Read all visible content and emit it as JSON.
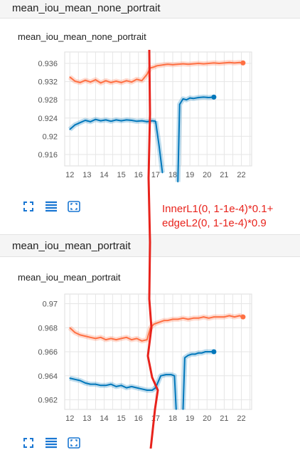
{
  "sections": [
    {
      "header": "mean_iou_mean_none_portrait"
    },
    {
      "header": "mean_iou_mean_portrait"
    }
  ],
  "annotation": {
    "line1": "InnerL1(0, 1-1e-4)*0.1+",
    "line2": "edgeL2(0, 1-1e-4)*0.9",
    "color": "#e8231c"
  },
  "toolbar_icons": [
    "fit-domain-icon",
    "data-table-icon",
    "expand-icon"
  ],
  "chart_data": [
    {
      "type": "line",
      "title": "mean_iou_mean_none_portrait",
      "xlabel": "",
      "ylabel": "",
      "xlim": [
        11.7,
        22.6
      ],
      "ylim": [
        0.9135,
        0.9385
      ],
      "x_ticks": [
        12,
        13,
        14,
        15,
        16,
        17,
        18,
        19,
        20,
        21,
        22
      ],
      "y_ticks": [
        0.916,
        0.92,
        0.924,
        0.928,
        0.932,
        0.936
      ],
      "y_tick_labels": [
        "0.916",
        "0.92",
        "0.924",
        "0.928",
        "0.932",
        "0.936"
      ],
      "grid": true,
      "series": [
        {
          "color": "#ff7043",
          "segments": [
            {
              "x": [
                12.0,
                12.3,
                12.6,
                12.9,
                13.2,
                13.5,
                13.8,
                14.1,
                14.4,
                14.7,
                15.0,
                15.3,
                15.6,
                15.9,
                16.2,
                16.5,
                16.7,
                16.9,
                17.1,
                17.3,
                17.5,
                17.7,
                18.0,
                18.3,
                18.6,
                18.9,
                19.2,
                19.5,
                19.8,
                20.1,
                20.4,
                20.7,
                21.0,
                21.3,
                21.6,
                21.9,
                22.1
              ],
              "y": [
                0.933,
                0.9321,
                0.9318,
                0.9323,
                0.9319,
                0.9324,
                0.9317,
                0.9322,
                0.9318,
                0.9321,
                0.9318,
                0.9322,
                0.9319,
                0.9325,
                0.9322,
                0.9336,
                0.935,
                0.9352,
                0.9355,
                0.9356,
                0.9357,
                0.9358,
                0.9357,
                0.9358,
                0.9359,
                0.9358,
                0.9359,
                0.936,
                0.9359,
                0.936,
                0.9361,
                0.936,
                0.9361,
                0.9362,
                0.9361,
                0.9362,
                0.9361
              ]
            }
          ]
        },
        {
          "color": "#0077bb",
          "segments": [
            {
              "x": [
                12.0,
                12.3,
                12.6,
                12.9,
                13.2,
                13.5,
                13.8,
                14.1,
                14.4,
                14.7,
                15.0,
                15.3,
                15.6,
                15.9,
                16.2,
                16.5,
                16.8,
                17.0
              ],
              "y": [
                0.9215,
                0.9225,
                0.923,
                0.9235,
                0.9232,
                0.9237,
                0.9234,
                0.9236,
                0.9233,
                0.9236,
                0.9234,
                0.9236,
                0.9235,
                0.9233,
                0.9234,
                0.9232,
                0.9234,
                0.9233
              ]
            },
            {
              "x": [
                17.0,
                17.2,
                17.4
              ],
              "y": [
                0.9233,
                0.918,
                0.912
              ]
            },
            {
              "x": [
                18.3,
                18.4,
                18.6,
                18.8,
                19.0,
                19.2,
                19.5,
                19.8,
                20.1,
                20.4
              ],
              "y": [
                0.91,
                0.927,
                0.9282,
                0.928,
                0.9284,
                0.9283,
                0.9285,
                0.9286,
                0.9285,
                0.9286
              ]
            }
          ]
        }
      ]
    },
    {
      "type": "line",
      "title": "mean_iou_mean_portrait",
      "xlabel": "",
      "ylabel": "",
      "xlim": [
        11.7,
        22.6
      ],
      "ylim": [
        0.9612,
        0.9708
      ],
      "x_ticks": [
        12,
        13,
        14,
        15,
        16,
        17,
        18,
        19,
        20,
        21,
        22
      ],
      "y_ticks": [
        0.962,
        0.964,
        0.966,
        0.968,
        0.97
      ],
      "y_tick_labels": [
        "0.962",
        "0.964",
        "0.966",
        "0.968",
        "0.97"
      ],
      "grid": true,
      "series": [
        {
          "color": "#ff7043",
          "segments": [
            {
              "x": [
                12.0,
                12.3,
                12.6,
                12.9,
                13.2,
                13.5,
                13.8,
                14.1,
                14.4,
                14.7,
                15.0,
                15.3,
                15.6,
                15.9,
                16.2,
                16.5,
                16.7,
                16.9,
                17.1,
                17.3,
                17.5,
                17.7,
                18.0,
                18.3,
                18.6,
                18.9,
                19.2,
                19.5,
                19.8,
                20.1,
                20.4,
                20.7,
                21.0,
                21.3,
                21.6,
                21.9,
                22.1
              ],
              "y": [
                0.968,
                0.9676,
                0.9674,
                0.9673,
                0.9672,
                0.9671,
                0.9672,
                0.967,
                0.9671,
                0.967,
                0.9671,
                0.9672,
                0.967,
                0.9671,
                0.9669,
                0.967,
                0.968,
                0.9683,
                0.9684,
                0.9685,
                0.9686,
                0.9686,
                0.9687,
                0.9687,
                0.9688,
                0.9687,
                0.9688,
                0.9688,
                0.9689,
                0.9688,
                0.9689,
                0.9689,
                0.9689,
                0.969,
                0.9689,
                0.969,
                0.9689
              ]
            }
          ]
        },
        {
          "color": "#0077bb",
          "segments": [
            {
              "x": [
                12.0,
                12.3,
                12.6,
                12.9,
                13.2,
                13.5,
                13.8,
                14.1,
                14.4,
                14.7,
                15.0,
                15.3,
                15.6,
                15.9,
                16.2,
                16.5,
                16.8,
                17.0
              ],
              "y": [
                0.9638,
                0.9637,
                0.9636,
                0.9634,
                0.9633,
                0.9633,
                0.9632,
                0.9632,
                0.9633,
                0.9631,
                0.9632,
                0.963,
                0.9631,
                0.963,
                0.9629,
                0.9628,
                0.9628,
                0.963
              ]
            },
            {
              "x": [
                17.0,
                17.3,
                17.6,
                17.9,
                18.1,
                18.2
              ],
              "y": [
                0.963,
                0.964,
                0.9641,
                0.9641,
                0.964,
                0.9612
              ]
            },
            {
              "x": [
                18.6,
                18.7,
                18.9,
                19.1,
                19.3,
                19.5,
                19.7,
                19.9,
                20.1,
                20.4
              ],
              "y": [
                0.9612,
                0.9655,
                0.9657,
                0.9658,
                0.9658,
                0.9659,
                0.9659,
                0.966,
                0.966,
                0.966
              ]
            }
          ]
        }
      ]
    }
  ]
}
